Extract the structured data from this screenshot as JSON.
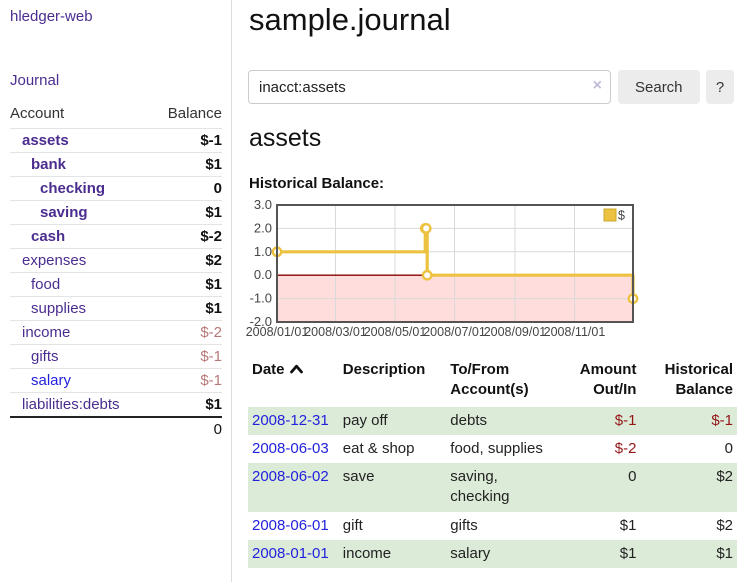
{
  "app": {
    "brand": "hledger-web",
    "nav_journal": "Journal"
  },
  "sidebar": {
    "accounts_header": {
      "account": "Account",
      "balance": "Balance"
    },
    "accounts": [
      {
        "name": "assets",
        "depth": 1,
        "bold": true,
        "link": "purple",
        "balance": "$-1",
        "balance_style": "neg-strong"
      },
      {
        "name": "bank",
        "depth": 2,
        "bold": true,
        "link": "purple",
        "balance": "$1",
        "balance_style": "pos"
      },
      {
        "name": "checking",
        "depth": 3,
        "bold": true,
        "link": "purple",
        "balance": "0",
        "balance_style": "pos"
      },
      {
        "name": "saving",
        "depth": 3,
        "bold": true,
        "link": "purple",
        "balance": "$1",
        "balance_style": "pos"
      },
      {
        "name": "cash",
        "depth": 2,
        "bold": true,
        "link": "purple",
        "balance": "$-2",
        "balance_style": "neg-strong"
      },
      {
        "name": "expenses",
        "depth": 1,
        "bold": false,
        "link": "purple",
        "balance": "$2",
        "balance_style": "pos"
      },
      {
        "name": "food",
        "depth": 2,
        "bold": false,
        "link": "purple",
        "balance": "$1",
        "balance_style": "pos"
      },
      {
        "name": "supplies",
        "depth": 2,
        "bold": false,
        "link": "purple",
        "balance": "$1",
        "balance_style": "pos"
      },
      {
        "name": "income",
        "depth": 1,
        "bold": false,
        "link": "purple",
        "balance": "$-2",
        "balance_style": "neg-soft"
      },
      {
        "name": "gifts",
        "depth": 2,
        "bold": false,
        "link": "purple",
        "balance": "$-1",
        "balance_style": "neg-soft"
      },
      {
        "name": "salary",
        "depth": 2,
        "bold": false,
        "link": "blue",
        "balance": "$-1",
        "balance_style": "neg-soft"
      },
      {
        "name": "liabilities:debts",
        "depth": 1,
        "bold": false,
        "link": "purple",
        "balance": "$1",
        "balance_style": "pos"
      }
    ],
    "total": "0"
  },
  "header": {
    "title": "sample.journal"
  },
  "search": {
    "value": "inacct:assets",
    "clear_icon": "×",
    "button_label": "Search",
    "help_label": "?"
  },
  "account_page": {
    "title": "assets",
    "chart_label": "Historical Balance:"
  },
  "chart_data": {
    "type": "line",
    "step": true,
    "title": "Historical Balance:",
    "series": [
      {
        "name": "$",
        "color": "#edc240",
        "x": [
          "2008-01-01",
          "2008-06-01",
          "2008-06-02",
          "2008-06-03",
          "2008-12-31"
        ],
        "values": [
          1,
          2,
          2,
          0,
          -1
        ]
      }
    ],
    "x_ticks": [
      "2008/01/01",
      "2008/03/01",
      "2008/05/01",
      "2008/07/01",
      "2008/09/01",
      "2008/11/01"
    ],
    "y_ticks": [
      3.0,
      2.0,
      1.0,
      0.0,
      -1.0,
      -2.0
    ],
    "xlim": [
      "2008-01-01",
      "2008-12-31"
    ],
    "ylim": [
      -2,
      3
    ],
    "grid": true,
    "negative_fill": "#ffdddd",
    "zero_line_color": "#8b0000",
    "grid_color": "#d9d9d9",
    "frame_color": "#545454",
    "tick_color": "#454545",
    "legend": {
      "label": "$",
      "position": "top-right"
    }
  },
  "register": {
    "columns": {
      "date": "Date",
      "sort_icon": "chevron-up",
      "description": "Description",
      "accounts": "To/From Account(s)",
      "amount": "Amount Out/In",
      "balance": "Historical Balance"
    },
    "rows": [
      {
        "date": "2008-12-31",
        "description": "pay off",
        "accounts": "debts",
        "amount": "$-1",
        "amount_neg": true,
        "balance": "$-1",
        "balance_neg": true
      },
      {
        "date": "2008-06-03",
        "description": "eat & shop",
        "accounts": "food, supplies",
        "amount": "$-2",
        "amount_neg": true,
        "balance": "0",
        "balance_neg": false
      },
      {
        "date": "2008-06-02",
        "description": "save",
        "accounts": "saving, checking",
        "amount": "0",
        "amount_neg": false,
        "balance": "$2",
        "balance_neg": false
      },
      {
        "date": "2008-06-01",
        "description": "gift",
        "accounts": "gifts",
        "amount": "$1",
        "amount_neg": false,
        "balance": "$2",
        "balance_neg": false
      },
      {
        "date": "2008-01-01",
        "description": "income",
        "accounts": "salary",
        "amount": "$1",
        "amount_neg": false,
        "balance": "$1",
        "balance_neg": false
      }
    ]
  }
}
